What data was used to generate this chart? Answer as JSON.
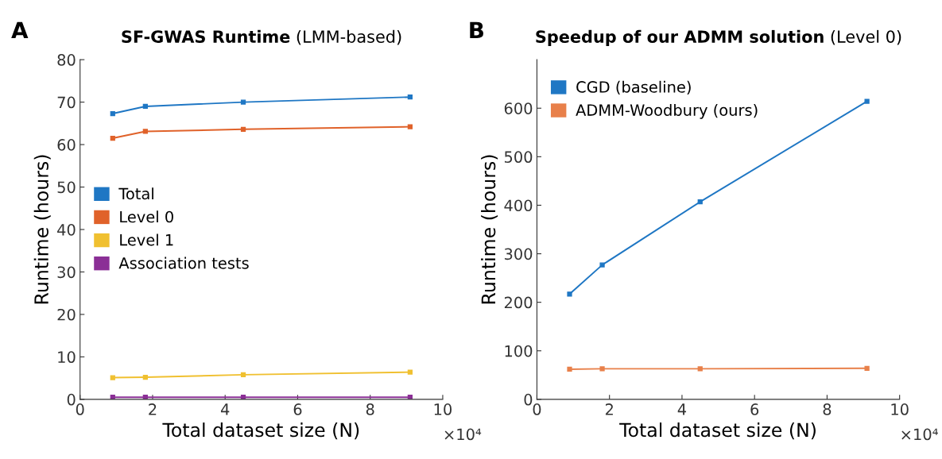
{
  "chart_data": [
    {
      "type": "line",
      "title": "SF-GWAS Runtime",
      "subtitle": "(LMM-based)",
      "xlabel": "Total dataset size (N)",
      "ylabel": "Runtime (hours)",
      "annotations": [
        "A",
        "×10⁴"
      ],
      "x": [
        0.9,
        1.8,
        4.5,
        9.1
      ],
      "series": [
        {
          "name": "Total",
          "color": "#1f77c4",
          "values": [
            67.3,
            69,
            70,
            71.2
          ]
        },
        {
          "name": "Level 0",
          "color": "#e0622a",
          "values": [
            61.5,
            63.1,
            63.6,
            64.2
          ]
        },
        {
          "name": "Level 1",
          "color": "#f0c030",
          "values": [
            5.1,
            5.2,
            5.8,
            6.4
          ]
        },
        {
          "name": "Association tests",
          "color": "#8b2f96",
          "values": [
            0.5,
            0.5,
            0.5,
            0.5
          ]
        }
      ],
      "xlim": [
        0,
        10
      ],
      "xticks": [
        0,
        2,
        4,
        6,
        8,
        10
      ],
      "ylim": [
        0,
        80
      ],
      "yticks": [
        0,
        10,
        20,
        30,
        40,
        50,
        60,
        70,
        80
      ],
      "legend": "center left",
      "marker": "square",
      "line_style": "solid",
      "grid": false
    },
    {
      "type": "line",
      "title": "Speedup of our ADMM solution",
      "subtitle": "(Level 0)",
      "xlabel": "Total dataset size (N)",
      "ylabel": "Runtime (hours)",
      "annotations": [
        "B",
        "×10⁴"
      ],
      "x": [
        0.9,
        1.8,
        4.5,
        9.1
      ],
      "series": [
        {
          "name": "CGD (baseline)",
          "color": "#1f77c4",
          "values": [
            217,
            277,
            407,
            614
          ]
        },
        {
          "name": "ADMM-Woodbury (ours)",
          "color": "#e8804a",
          "values": [
            62,
            63,
            63,
            64
          ]
        }
      ],
      "xlim": [
        0,
        10
      ],
      "xticks": [
        0,
        2,
        4,
        6,
        8,
        10
      ],
      "ylim": [
        0,
        700
      ],
      "yticks": [
        0,
        100,
        200,
        300,
        400,
        500,
        600
      ],
      "legend": "top left",
      "marker": "square",
      "line_style": "solid",
      "grid": false
    }
  ]
}
